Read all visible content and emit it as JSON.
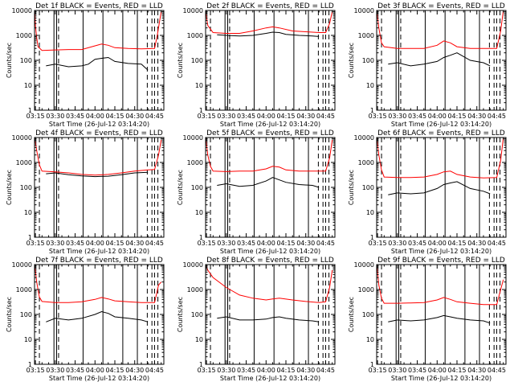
{
  "chart_data": {
    "type": "line",
    "y_scale": "log",
    "ylim": [
      1,
      10000
    ],
    "xlim": [
      "03:14:20",
      "04:52:00"
    ],
    "x_ticks": [
      "03:15",
      "03:30",
      "03:45",
      "04:00",
      "04:15",
      "04:30",
      "04:45"
    ],
    "y_ticks": [
      "1",
      "10",
      "100",
      "1000",
      "10000"
    ],
    "series_colors": {
      "events": "#000000",
      "lld": "#ff0000"
    },
    "vertical_markers": {
      "solid": [
        "03:29:00",
        "03:31:00",
        "03:51:00",
        "04:06:00",
        "04:21:00",
        "04:32:00"
      ],
      "dashed": [
        "03:18:00",
        "03:32:30",
        "04:39:30",
        "04:43:00",
        "04:45:00",
        "04:47:30"
      ]
    },
    "panels": [
      {
        "title": "Det 1f BLACK = Events, RED = LLD",
        "ylabel": "Counts/sec",
        "xlabel": "Start Time (26-Jul-12 03:14:20)",
        "series": [
          {
            "name": "Events",
            "x": [
              "03:23",
              "03:30",
              "03:40",
              "03:50",
              "03:55",
              "04:00",
              "04:05",
              "04:10",
              "04:15",
              "04:25",
              "04:35",
              "04:40"
            ],
            "y": [
              60,
              70,
              55,
              60,
              70,
              110,
              120,
              130,
              90,
              75,
              70,
              40
            ]
          },
          {
            "name": "LLD",
            "x": [
              "03:14:30",
              "03:15",
              "03:16",
              "03:17",
              "03:20",
              "03:30",
              "03:40",
              "03:50",
              "04:00",
              "04:05",
              "04:10",
              "04:15",
              "04:25",
              "04:35",
              "04:45",
              "04:47",
              "04:50"
            ],
            "y": [
              10000,
              2500,
              800,
              350,
              250,
              260,
              270,
              270,
              380,
              450,
              400,
              320,
              300,
              290,
              300,
              1000,
              9000
            ]
          }
        ]
      },
      {
        "title": "Det 2f BLACK = Events, RED = LLD",
        "ylabel": "Counts/sec",
        "xlabel": "Start Time (26-Jul-12 03:14:20)",
        "series": [
          {
            "name": "Events",
            "x": [
              "03:23",
              "03:30",
              "03:40",
              "03:50",
              "04:00",
              "04:05",
              "04:10",
              "04:15",
              "04:25",
              "04:35",
              "04:40"
            ],
            "y": [
              1050,
              1000,
              950,
              1000,
              1200,
              1350,
              1300,
              1100,
              1000,
              950,
              900
            ]
          },
          {
            "name": "LLD",
            "x": [
              "03:14:30",
              "03:16",
              "03:20",
              "03:30",
              "03:40",
              "03:50",
              "04:00",
              "04:05",
              "04:10",
              "04:20",
              "04:30",
              "04:40",
              "04:45",
              "04:48",
              "04:50"
            ],
            "y": [
              9000,
              2500,
              1300,
              1200,
              1200,
              1500,
              2000,
              2200,
              2000,
              1500,
              1400,
              1300,
              1300,
              3000,
              9000
            ]
          }
        ]
      },
      {
        "title": "Det 3f BLACK = Events, RED = LLD",
        "ylabel": "Counts/sec",
        "xlabel": "Start Time (26-Jul-12 03:14:20)",
        "series": [
          {
            "name": "Events",
            "x": [
              "03:23",
              "03:30",
              "03:40",
              "03:50",
              "04:00",
              "04:05",
              "04:10",
              "04:15",
              "04:25",
              "04:35",
              "04:40"
            ],
            "y": [
              70,
              80,
              60,
              70,
              90,
              130,
              160,
              200,
              100,
              80,
              60
            ]
          },
          {
            "name": "LLD",
            "x": [
              "03:14:30",
              "03:16",
              "03:18",
              "03:20",
              "03:30",
              "03:40",
              "03:50",
              "04:00",
              "04:05",
              "04:10",
              "04:15",
              "04:25",
              "04:35",
              "04:45",
              "04:48",
              "04:50"
            ],
            "y": [
              10000,
              2000,
              500,
              350,
              300,
              300,
              300,
              400,
              600,
              500,
              350,
              300,
              300,
              300,
              1500,
              10000
            ]
          }
        ]
      },
      {
        "title": "Det 4f BLACK = Events, RED = LLD",
        "ylabel": "Counts/sec",
        "xlabel": "Start Time (26-Jul-12 03:14:20)",
        "series": [
          {
            "name": "Events",
            "x": [
              "03:23",
              "03:30",
              "03:40",
              "03:50",
              "04:00",
              "04:10",
              "04:20",
              "04:30",
              "04:40"
            ],
            "y": [
              350,
              380,
              320,
              290,
              270,
              280,
              320,
              380,
              400
            ]
          },
          {
            "name": "LLD",
            "x": [
              "03:14:30",
              "03:16",
              "03:18",
              "03:20",
              "03:30",
              "03:40",
              "03:50",
              "04:00",
              "04:10",
              "04:20",
              "04:30",
              "04:40",
              "04:45",
              "04:48",
              "04:50"
            ],
            "y": [
              10000,
              3000,
              800,
              450,
              420,
              380,
              330,
              310,
              330,
              380,
              450,
              500,
              520,
              2000,
              8000
            ]
          }
        ]
      },
      {
        "title": "Det 5f BLACK = Events, RED = LLD",
        "ylabel": "Counts/sec",
        "xlabel": "Start Time (26-Jul-12 03:14:20)",
        "series": [
          {
            "name": "Events",
            "x": [
              "03:23",
              "03:30",
              "03:40",
              "03:50",
              "04:00",
              "04:05",
              "04:10",
              "04:15",
              "04:25",
              "04:35",
              "04:40"
            ],
            "y": [
              120,
              140,
              110,
              120,
              180,
              250,
              200,
              160,
              130,
              120,
              100
            ]
          },
          {
            "name": "LLD",
            "x": [
              "03:14:30",
              "03:16",
              "03:18",
              "03:20",
              "03:30",
              "03:40",
              "03:50",
              "04:00",
              "04:05",
              "04:10",
              "04:15",
              "04:25",
              "04:35",
              "04:45",
              "04:48",
              "04:50"
            ],
            "y": [
              10000,
              2000,
              700,
              450,
              430,
              450,
              450,
              550,
              700,
              650,
              500,
              450,
              450,
              450,
              1500,
              8000
            ]
          }
        ]
      },
      {
        "title": "Det 6f BLACK = Events, RED = LLD",
        "ylabel": "Counts/sec",
        "xlabel": "Start Time (26-Jul-12 03:14:20)",
        "series": [
          {
            "name": "Events",
            "x": [
              "03:23",
              "03:30",
              "03:40",
              "03:50",
              "04:00",
              "04:05",
              "04:10",
              "04:15",
              "04:25",
              "04:35",
              "04:40"
            ],
            "y": [
              50,
              60,
              55,
              60,
              90,
              130,
              150,
              170,
              90,
              70,
              55
            ]
          },
          {
            "name": "LLD",
            "x": [
              "03:14:30",
              "03:16",
              "03:18",
              "03:20",
              "03:30",
              "03:40",
              "03:50",
              "04:00",
              "04:05",
              "04:10",
              "04:15",
              "04:25",
              "04:35",
              "04:45",
              "04:48",
              "04:50"
            ],
            "y": [
              10000,
              2000,
              500,
              260,
              250,
              250,
              260,
              330,
              420,
              450,
              330,
              260,
              240,
              250,
              1200,
              10000
            ]
          }
        ]
      },
      {
        "title": "Det 7f BLACK = Events, RED = LLD",
        "ylabel": "Counts/sec",
        "xlabel": "Start Time (26-Jul-12 03:14:20)",
        "series": [
          {
            "name": "Events",
            "x": [
              "03:23",
              "03:30",
              "03:40",
              "03:50",
              "04:00",
              "04:05",
              "04:10",
              "04:15",
              "04:25",
              "04:35",
              "04:40"
            ],
            "y": [
              50,
              70,
              60,
              70,
              100,
              130,
              110,
              80,
              70,
              60,
              50
            ]
          },
          {
            "name": "LLD",
            "x": [
              "03:14:30",
              "03:16",
              "03:18",
              "03:20",
              "03:30",
              "03:40",
              "03:50",
              "04:00",
              "04:05",
              "04:10",
              "04:15",
              "04:25",
              "04:35",
              "04:45",
              "04:48",
              "04:50"
            ],
            "y": [
              10000,
              2000,
              500,
              330,
              300,
              300,
              320,
              400,
              480,
              420,
              350,
              320,
              300,
              300,
              1500,
              2000
            ]
          }
        ]
      },
      {
        "title": "Det 8f BLACK = Events, RED = LLD",
        "ylabel": "Counts/sec",
        "xlabel": "Start Time (26-Jul-12 03:14:20)",
        "series": [
          {
            "name": "Events",
            "x": [
              "03:23",
              "03:30",
              "03:40",
              "03:50",
              "04:00",
              "04:05",
              "04:10",
              "04:15",
              "04:25",
              "04:35",
              "04:40"
            ],
            "y": [
              70,
              80,
              60,
              60,
              65,
              75,
              80,
              70,
              60,
              55,
              50
            ]
          },
          {
            "name": "LLD",
            "x": [
              "03:14:30",
              "03:16",
              "03:20",
              "03:30",
              "03:40",
              "03:50",
              "04:00",
              "04:05",
              "04:10",
              "04:20",
              "04:30",
              "04:40",
              "04:45",
              "04:48",
              "04:50"
            ],
            "y": [
              10000,
              6000,
              3000,
              1200,
              600,
              450,
              380,
              420,
              450,
              380,
              330,
              300,
              320,
              1200,
              6000
            ]
          }
        ]
      },
      {
        "title": "Det 9f BLACK = Events, RED = LLD",
        "ylabel": "Counts/sec",
        "xlabel": "Start Time (26-Jul-12 03:14:20)",
        "series": [
          {
            "name": "Events",
            "x": [
              "03:23",
              "03:30",
              "03:40",
              "03:50",
              "04:00",
              "04:05",
              "04:10",
              "04:15",
              "04:25",
              "04:35",
              "04:40"
            ],
            "y": [
              50,
              60,
              55,
              60,
              75,
              90,
              80,
              70,
              60,
              55,
              45
            ]
          },
          {
            "name": "LLD",
            "x": [
              "03:14:30",
              "03:16",
              "03:18",
              "03:20",
              "03:30",
              "03:40",
              "03:50",
              "04:00",
              "04:05",
              "04:10",
              "04:15",
              "04:25",
              "04:35",
              "04:45",
              "04:48",
              "04:50"
            ],
            "y": [
              10000,
              1500,
              450,
              280,
              280,
              290,
              300,
              380,
              480,
              400,
              320,
              280,
              250,
              250,
              1000,
              2500
            ]
          }
        ]
      }
    ]
  }
}
